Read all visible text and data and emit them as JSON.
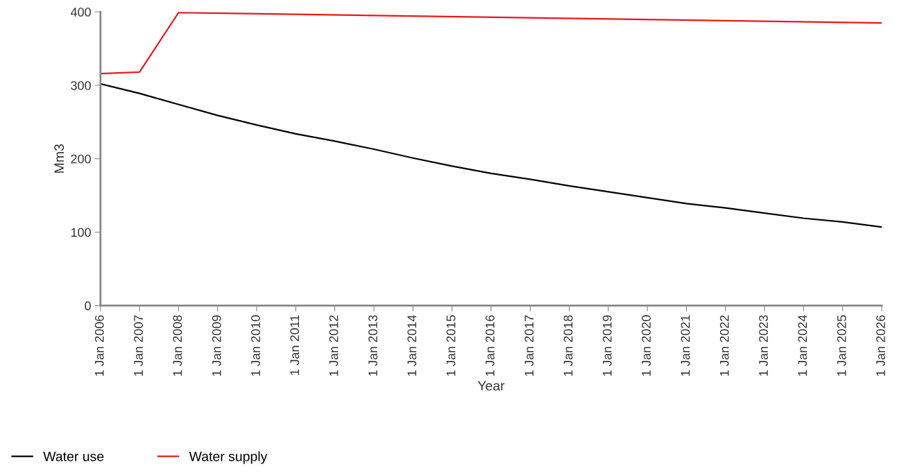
{
  "chart_data": {
    "type": "line",
    "xlabel": "Year",
    "ylabel": "Mm3",
    "x": [
      "2006-01-01",
      "2007-01-01",
      "2008-01-01",
      "2009-01-01",
      "2010-01-01",
      "2011-01-01",
      "2012-01-01",
      "2013-01-01",
      "2014-01-01",
      "2015-01-01",
      "2016-01-01",
      "2017-01-01",
      "2018-01-01",
      "2019-01-01",
      "2020-01-01",
      "2021-01-01",
      "2022-01-01",
      "2023-01-01",
      "2024-01-01",
      "2025-01-01",
      "2026-01-01"
    ],
    "series": [
      {
        "name": "Water use",
        "color": "#000000",
        "values": [
          302,
          289,
          274,
          259,
          246,
          234,
          224,
          213,
          201,
          190,
          180,
          172,
          163,
          155,
          147,
          139,
          133,
          126,
          119,
          114,
          107
        ]
      },
      {
        "name": "Water supply",
        "color": "#e8191c",
        "x": [
          "2006-01-01",
          "2007-01-01",
          "2008-01-01",
          "2026-01-01"
        ],
        "values": [
          316,
          318,
          399,
          385
        ]
      }
    ],
    "xlim": [
      "2006-01-01",
      "2026-01-01"
    ],
    "xticks": [
      {
        "value": "2006-01-01",
        "label": "1 Jan 2006"
      },
      {
        "value": "2007-01-01",
        "label": "1 Jan 2007"
      },
      {
        "value": "2008-01-01",
        "label": "1 Jan 2008"
      },
      {
        "value": "2009-01-01",
        "label": "1 Jan 2009"
      },
      {
        "value": "2010-01-01",
        "label": "1 Jan 2010"
      },
      {
        "value": "2011-01-01",
        "label": "1 Jan 2011"
      },
      {
        "value": "2012-01-01",
        "label": "1 Jan 2012"
      },
      {
        "value": "2013-01-01",
        "label": "1 Jan 2013"
      },
      {
        "value": "2014-01-01",
        "label": "1 Jan 2014"
      },
      {
        "value": "2015-01-01",
        "label": "1 Jan 2015"
      },
      {
        "value": "2016-01-01",
        "label": "1 Jan 2016"
      },
      {
        "value": "2017-01-01",
        "label": "1 Jan 2017"
      },
      {
        "value": "2018-01-01",
        "label": "1 Jan 2018"
      },
      {
        "value": "2019-01-01",
        "label": "1 Jan 2019"
      },
      {
        "value": "2020-01-01",
        "label": "1 Jan 2020"
      },
      {
        "value": "2021-01-01",
        "label": "1 Jan 2021"
      },
      {
        "value": "2022-01-01",
        "label": "1 Jan 2022"
      },
      {
        "value": "2023-01-01",
        "label": "1 Jan 2023"
      },
      {
        "value": "2024-01-01",
        "label": "1 Jan 2024"
      },
      {
        "value": "2025-01-01",
        "label": "1 Jan 2025"
      },
      {
        "value": "2026-01-01",
        "label": "1 Jan 2026"
      }
    ],
    "ylim": [
      0,
      400
    ],
    "yticks": [
      0,
      100,
      200,
      300,
      400
    ],
    "grid": false,
    "legend": "bottom left",
    "marker": "none",
    "line_style": "solid"
  }
}
